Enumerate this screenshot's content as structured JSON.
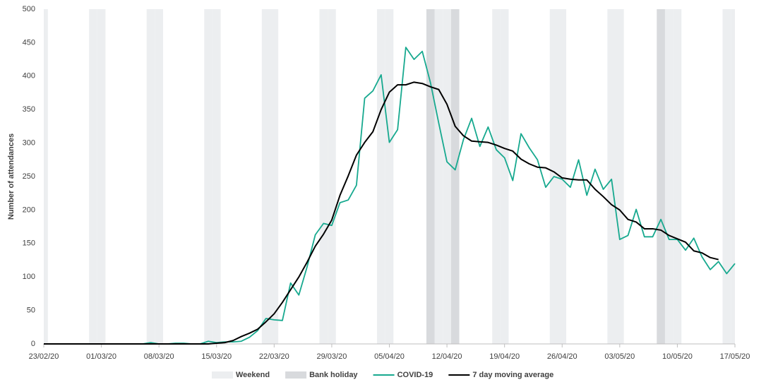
{
  "chart_data": {
    "type": "line",
    "y_label": "Number of attendances",
    "x": [
      "23/02/20",
      "24/02/20",
      "25/02/20",
      "26/02/20",
      "27/02/20",
      "28/02/20",
      "29/02/20",
      "01/03/20",
      "02/03/20",
      "03/03/20",
      "04/03/20",
      "05/03/20",
      "06/03/20",
      "07/03/20",
      "08/03/20",
      "09/03/20",
      "10/03/20",
      "11/03/20",
      "12/03/20",
      "13/03/20",
      "14/03/20",
      "15/03/20",
      "16/03/20",
      "17/03/20",
      "18/03/20",
      "19/03/20",
      "20/03/20",
      "21/03/20",
      "22/03/20",
      "23/03/20",
      "24/03/20",
      "25/03/20",
      "26/03/20",
      "27/03/20",
      "28/03/20",
      "29/03/20",
      "30/03/20",
      "31/03/20",
      "01/04/20",
      "02/04/20",
      "03/04/20",
      "04/04/20",
      "05/04/20",
      "06/04/20",
      "07/04/20",
      "08/04/20",
      "09/04/20",
      "10/04/20",
      "11/04/20",
      "12/04/20",
      "13/04/20",
      "14/04/20",
      "15/04/20",
      "16/04/20",
      "17/04/20",
      "18/04/20",
      "19/04/20",
      "20/04/20",
      "21/04/20",
      "22/04/20",
      "23/04/20",
      "24/04/20",
      "25/04/20",
      "26/04/20",
      "27/04/20",
      "28/04/20",
      "29/04/20",
      "30/04/20",
      "01/05/20",
      "02/05/20",
      "03/05/20",
      "04/05/20",
      "05/05/20",
      "06/05/20",
      "07/05/20",
      "08/05/20",
      "09/05/20",
      "10/05/20",
      "11/05/20",
      "12/05/20",
      "13/05/20",
      "14/05/20",
      "15/05/20",
      "16/05/20",
      "17/05/20"
    ],
    "xticks": [
      "23/02/20",
      "01/03/20",
      "08/03/20",
      "15/03/20",
      "22/03/20",
      "29/03/20",
      "05/04/20",
      "12/04/20",
      "19/04/20",
      "26/04/20",
      "03/05/20",
      "10/05/20",
      "17/05/20"
    ],
    "ylim": [
      0,
      500
    ],
    "yticks": [
      0,
      50,
      100,
      150,
      200,
      250,
      300,
      350,
      400,
      450,
      500
    ],
    "shading": [
      {
        "name": "Weekend",
        "color": "#eceef0",
        "dates": [
          "23/02/20",
          "29/02/20",
          "01/03/20",
          "07/03/20",
          "08/03/20",
          "14/03/20",
          "15/03/20",
          "21/03/20",
          "22/03/20",
          "28/03/20",
          "29/03/20",
          "04/04/20",
          "05/04/20",
          "11/04/20",
          "12/04/20",
          "18/04/20",
          "19/04/20",
          "25/04/20",
          "26/04/20",
          "02/05/20",
          "03/05/20",
          "09/05/20",
          "10/05/20",
          "16/05/20",
          "17/05/20"
        ]
      },
      {
        "name": "Bank holiday",
        "color": "#d8dadd",
        "dates": [
          "10/04/20",
          "13/04/20",
          "08/05/20"
        ]
      }
    ],
    "series": [
      {
        "name": "COVID-19",
        "color": "#17a98f",
        "values": [
          0,
          0,
          0,
          0,
          0,
          0,
          0,
          0,
          0,
          0,
          0,
          0,
          0,
          2,
          0,
          0,
          1,
          1,
          0,
          0,
          4,
          2,
          3,
          3,
          4,
          10,
          20,
          38,
          36,
          35,
          91,
          73,
          115,
          163,
          180,
          177,
          211,
          215,
          237,
          367,
          378,
          402,
          301,
          320,
          443,
          425,
          437,
          390,
          330,
          272,
          260,
          305,
          337,
          295,
          324,
          290,
          278,
          244,
          314,
          293,
          275,
          234,
          250,
          246,
          234,
          275,
          222,
          261,
          231,
          246,
          156,
          162,
          201,
          160,
          160,
          186,
          156,
          156,
          140,
          158,
          130,
          111,
          123,
          105,
          120
        ]
      },
      {
        "name": "7 day moving average",
        "color": "#000000",
        "values": [
          0,
          0,
          0,
          0,
          0,
          0,
          0,
          0,
          0,
          0,
          0,
          0,
          0,
          0,
          0,
          0,
          0,
          0,
          0,
          0,
          0,
          1,
          2,
          5,
          11,
          16,
          22,
          33,
          45,
          62,
          81,
          100,
          122,
          146,
          164,
          185,
          222,
          251,
          282,
          301,
          317,
          350,
          376,
          387,
          387,
          391,
          389,
          384,
          380,
          358,
          325,
          311,
          303,
          302,
          301,
          297,
          292,
          288,
          276,
          269,
          264,
          263,
          257,
          248,
          246,
          245,
          245,
          231,
          220,
          208,
          200,
          186,
          182,
          172,
          172,
          170,
          162,
          157,
          152,
          139,
          136,
          129,
          126,
          null,
          null
        ]
      }
    ]
  }
}
